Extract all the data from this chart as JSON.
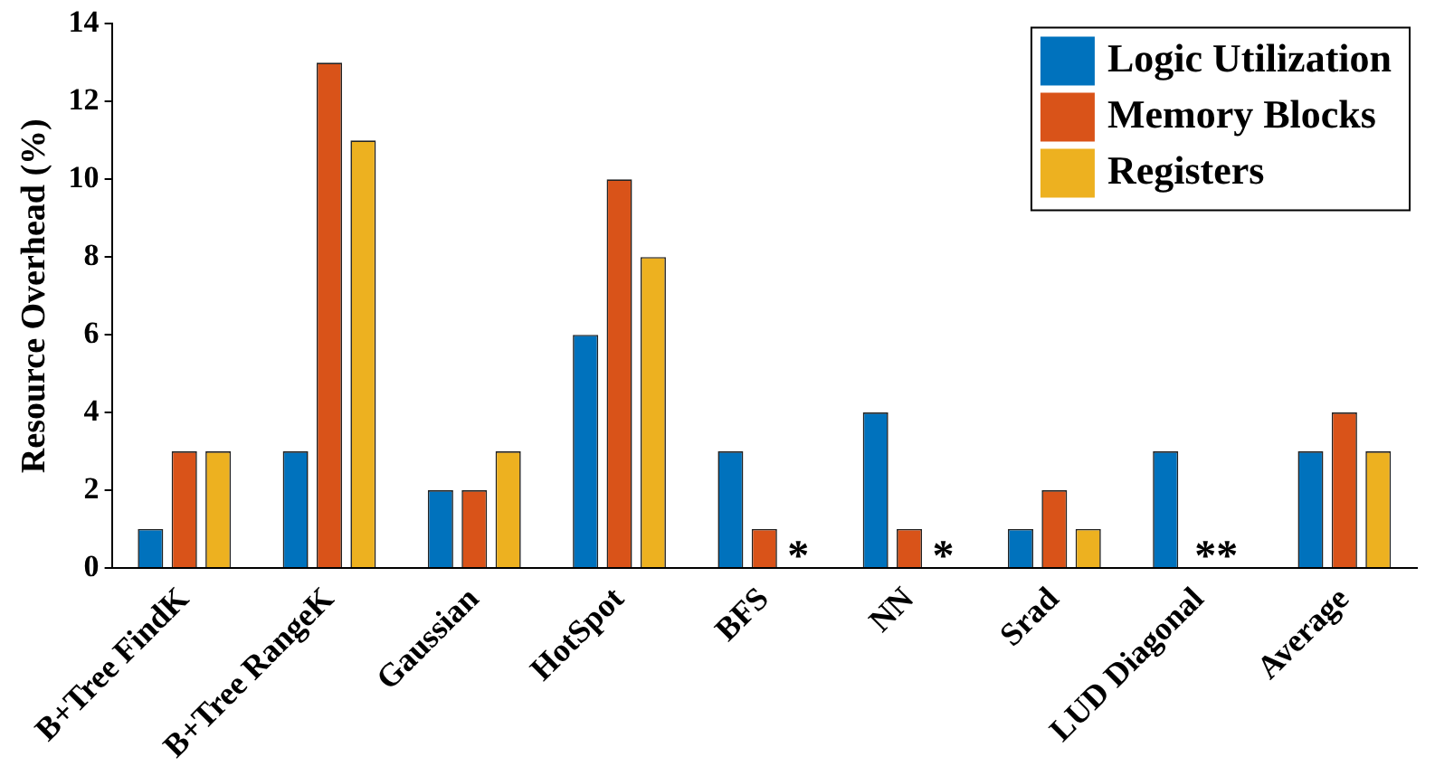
{
  "chart_data": {
    "type": "bar",
    "ylabel": "Resource Overhead (%)",
    "categories": [
      "B+Tree FindK",
      "B+Tree RangeK",
      "Gaussian",
      "HotSpot",
      "BFS",
      "NN",
      "Srad",
      "LUD Diagonal",
      "Average"
    ],
    "series": [
      {
        "name": "Logic Utilization",
        "color": "#0072bd",
        "values": [
          1,
          3,
          2,
          6,
          3,
          4,
          1,
          3,
          3
        ]
      },
      {
        "name": "Memory Blocks",
        "color": "#d95319",
        "values": [
          3,
          13,
          2,
          10,
          1,
          1,
          2,
          null,
          4
        ]
      },
      {
        "name": "Registers",
        "color": "#edb120",
        "values": [
          3,
          11,
          3,
          8,
          null,
          null,
          1,
          null,
          3
        ]
      }
    ],
    "ylim": [
      0,
      14
    ],
    "yticks": [
      0,
      2,
      4,
      6,
      8,
      10,
      12,
      14
    ],
    "grid": false,
    "legend": "top right",
    "annotations": [
      "*",
      "*",
      "**"
    ]
  }
}
